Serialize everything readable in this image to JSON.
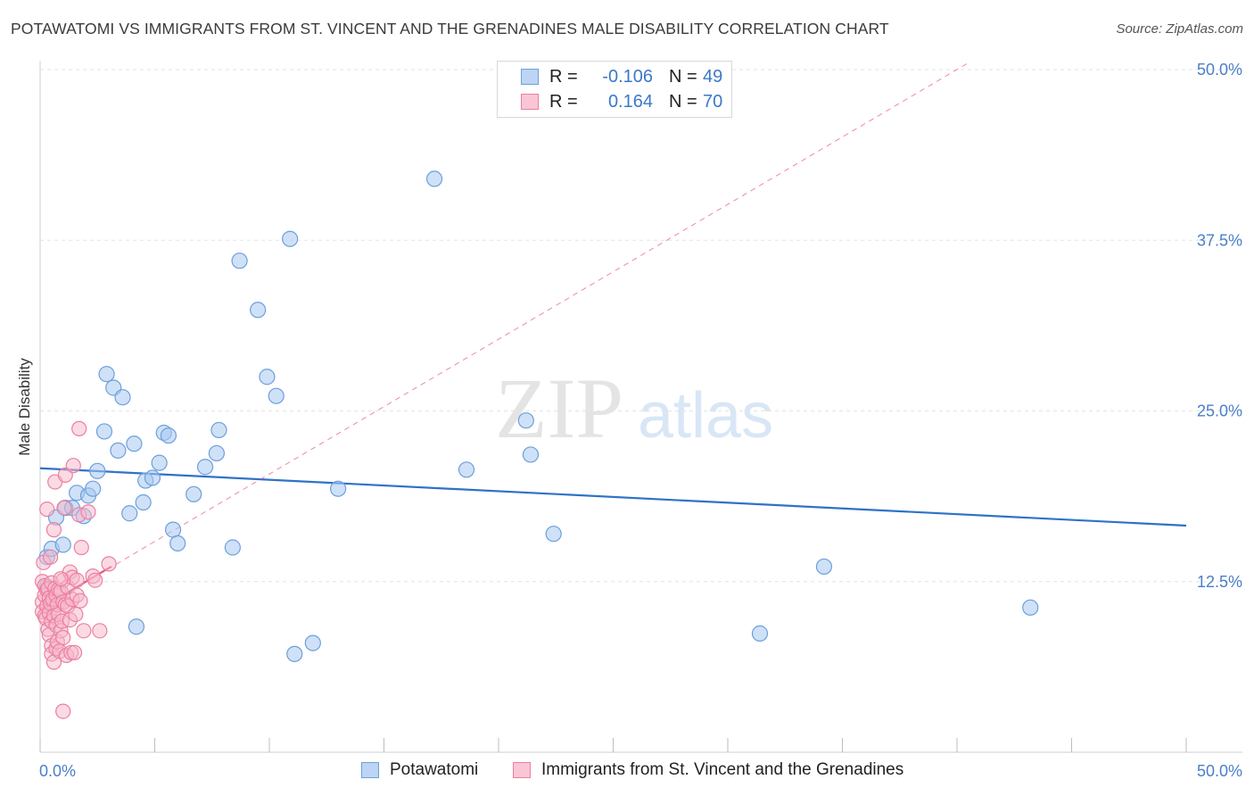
{
  "header": {
    "title": "POTAWATOMI VS IMMIGRANTS FROM ST. VINCENT AND THE GRENADINES MALE DISABILITY CORRELATION CHART",
    "source": "Source: ZipAtlas.com"
  },
  "watermark": {
    "zip": "ZIP",
    "atlas": "atlas"
  },
  "legend": {
    "rows": [
      {
        "r_label": "R =",
        "r_value": "-0.106",
        "n_label": "N =",
        "n_value": "49"
      },
      {
        "r_label": "R =",
        "r_value": "0.164",
        "n_label": "N =",
        "n_value": "70"
      }
    ]
  },
  "bottom_legend": {
    "series1": "Potawatomi",
    "series2": "Immigrants from St. Vincent and the Grenadines"
  },
  "colors": {
    "blue_fill": "#a8c8f0",
    "blue_stroke": "#6d9fdc",
    "blue_line": "#2f72c8",
    "pink_fill": "#f6b7ca",
    "pink_stroke": "#ec7fa1",
    "pink_line": "#e8557f",
    "grid": "#e3e3e3",
    "axis_text": "#4a7fc8"
  },
  "chart_data": {
    "type": "scatter",
    "title": "POTAWATOMI VS IMMIGRANTS FROM ST. VINCENT AND THE GRENADINES MALE DISABILITY CORRELATION CHART",
    "xlabel": "",
    "ylabel": "Male Disability",
    "xlim": [
      0,
      50
    ],
    "ylim": [
      0,
      50
    ],
    "x_tick_labels": [
      "0.0%",
      "50.0%"
    ],
    "y_ticks": [
      12.5,
      25.0,
      37.5,
      50.0
    ],
    "y_tick_labels": [
      "12.5%",
      "25.0%",
      "37.5%",
      "50.0%"
    ],
    "series": [
      {
        "name": "Potawatomi",
        "color": "#a8c8f0",
        "r": -0.106,
        "n": 49,
        "trend": {
          "x": [
            0,
            50
          ],
          "y": [
            20.8,
            16.6
          ]
        },
        "points": [
          [
            0.3,
            12.1
          ],
          [
            0.3,
            14.3
          ],
          [
            0.5,
            14.9
          ],
          [
            0.7,
            17.2
          ],
          [
            1.0,
            15.2
          ],
          [
            1.1,
            17.9
          ],
          [
            1.4,
            17.9
          ],
          [
            1.6,
            19.0
          ],
          [
            1.9,
            17.3
          ],
          [
            2.1,
            18.8
          ],
          [
            2.3,
            19.3
          ],
          [
            2.5,
            20.6
          ],
          [
            2.8,
            23.5
          ],
          [
            2.9,
            27.7
          ],
          [
            3.2,
            26.7
          ],
          [
            3.4,
            22.1
          ],
          [
            3.6,
            26.0
          ],
          [
            3.9,
            17.5
          ],
          [
            4.1,
            22.6
          ],
          [
            4.2,
            9.2
          ],
          [
            4.5,
            18.3
          ],
          [
            4.6,
            19.9
          ],
          [
            4.9,
            20.1
          ],
          [
            5.2,
            21.2
          ],
          [
            5.4,
            23.4
          ],
          [
            5.6,
            23.2
          ],
          [
            5.8,
            16.3
          ],
          [
            6.0,
            15.3
          ],
          [
            6.7,
            18.9
          ],
          [
            7.2,
            20.9
          ],
          [
            7.7,
            21.9
          ],
          [
            7.8,
            23.6
          ],
          [
            8.4,
            15.0
          ],
          [
            8.7,
            36.0
          ],
          [
            9.5,
            32.4
          ],
          [
            9.9,
            27.5
          ],
          [
            10.3,
            26.1
          ],
          [
            10.9,
            37.6
          ],
          [
            11.1,
            7.2
          ],
          [
            11.9,
            8.0
          ],
          [
            13.0,
            19.3
          ],
          [
            17.2,
            42.0
          ],
          [
            18.6,
            20.7
          ],
          [
            21.2,
            24.3
          ],
          [
            21.4,
            21.8
          ],
          [
            22.4,
            16.0
          ],
          [
            31.4,
            8.7
          ],
          [
            34.2,
            13.6
          ],
          [
            43.2,
            10.6
          ]
        ]
      },
      {
        "name": "Immigrants from St. Vincent and the Grenadines",
        "color": "#f6b7ca",
        "r": 0.164,
        "n": 70,
        "trend_solid": {
          "x": [
            0,
            3.1
          ],
          "y": [
            10.5,
            13.6
          ]
        },
        "trend_dashed": {
          "x": [
            0,
            40.5
          ],
          "y": [
            10.5,
            50.5
          ]
        },
        "points": [
          [
            0.1,
            12.5
          ],
          [
            0.1,
            11.0
          ],
          [
            0.1,
            10.3
          ],
          [
            0.15,
            13.9
          ],
          [
            0.2,
            12.2
          ],
          [
            0.2,
            10.0
          ],
          [
            0.2,
            11.5
          ],
          [
            0.25,
            9.8
          ],
          [
            0.3,
            17.8
          ],
          [
            0.3,
            11.9
          ],
          [
            0.3,
            10.7
          ],
          [
            0.35,
            9.0
          ],
          [
            0.35,
            12.0
          ],
          [
            0.4,
            10.2
          ],
          [
            0.4,
            11.3
          ],
          [
            0.4,
            8.6
          ],
          [
            0.45,
            14.3
          ],
          [
            0.45,
            10.9
          ],
          [
            0.5,
            12.4
          ],
          [
            0.5,
            9.6
          ],
          [
            0.5,
            7.8
          ],
          [
            0.5,
            7.2
          ],
          [
            0.55,
            11.2
          ],
          [
            0.6,
            10.0
          ],
          [
            0.6,
            6.6
          ],
          [
            0.6,
            16.3
          ],
          [
            0.65,
            19.8
          ],
          [
            0.65,
            12.0
          ],
          [
            0.7,
            11.5
          ],
          [
            0.7,
            9.3
          ],
          [
            0.7,
            7.6
          ],
          [
            0.75,
            10.8
          ],
          [
            0.75,
            8.1
          ],
          [
            0.8,
            11.9
          ],
          [
            0.8,
            10.1
          ],
          [
            0.85,
            7.4
          ],
          [
            0.9,
            8.9
          ],
          [
            0.9,
            11.8
          ],
          [
            0.95,
            9.6
          ],
          [
            1.0,
            12.6
          ],
          [
            1.0,
            11.0
          ],
          [
            1.0,
            8.4
          ],
          [
            1.0,
            3.0
          ],
          [
            1.05,
            17.9
          ],
          [
            1.1,
            20.3
          ],
          [
            1.1,
            10.8
          ],
          [
            1.15,
            7.1
          ],
          [
            1.2,
            12.1
          ],
          [
            1.2,
            10.7
          ],
          [
            1.3,
            9.7
          ],
          [
            1.3,
            13.2
          ],
          [
            1.35,
            7.3
          ],
          [
            1.4,
            12.8
          ],
          [
            1.4,
            11.2
          ],
          [
            1.45,
            21.0
          ],
          [
            1.5,
            7.3
          ],
          [
            1.55,
            10.1
          ],
          [
            1.6,
            12.6
          ],
          [
            1.6,
            11.5
          ],
          [
            1.7,
            17.4
          ],
          [
            1.7,
            23.7
          ],
          [
            1.75,
            11.1
          ],
          [
            1.8,
            15.0
          ],
          [
            1.9,
            8.9
          ],
          [
            2.1,
            17.6
          ],
          [
            2.3,
            12.9
          ],
          [
            2.6,
            8.9
          ],
          [
            3.0,
            13.8
          ],
          [
            2.4,
            12.6
          ],
          [
            0.9,
            12.7
          ]
        ]
      }
    ]
  }
}
